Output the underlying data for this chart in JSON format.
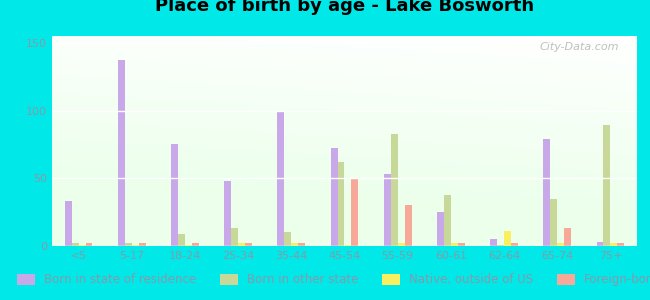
{
  "title": "Place of birth by age - Lake Bosworth",
  "categories": [
    "<5",
    "5-17",
    "18-24",
    "25-34",
    "35-44",
    "45-54",
    "55-59",
    "60-61",
    "62-64",
    "65-74",
    "75+"
  ],
  "series": {
    "Born in state of residence": [
      33,
      137,
      75,
      48,
      100,
      72,
      53,
      25,
      5,
      79,
      3
    ],
    "Born in other state": [
      2,
      2,
      9,
      13,
      10,
      62,
      83,
      38,
      1,
      35,
      89
    ],
    "Native, outside of US": [
      1,
      1,
      1,
      2,
      2,
      1,
      2,
      2,
      11,
      2,
      2
    ],
    "Foreign-born": [
      2,
      2,
      2,
      2,
      2,
      50,
      30,
      2,
      2,
      13,
      2
    ]
  },
  "colors": {
    "Born in state of residence": "#c8a8e8",
    "Born in other state": "#c8d898",
    "Native, outside of US": "#f8f060",
    "Foreign-born": "#f8a898"
  },
  "bar_width": 0.13,
  "ylim": [
    0,
    155
  ],
  "yticks": [
    0,
    50,
    100,
    150
  ],
  "background_color": "#00e8e8",
  "watermark": "City-Data.com",
  "title_fontsize": 13,
  "legend_fontsize": 8.5,
  "tick_color": "#8899aa",
  "grid_color": "#ccddcc"
}
